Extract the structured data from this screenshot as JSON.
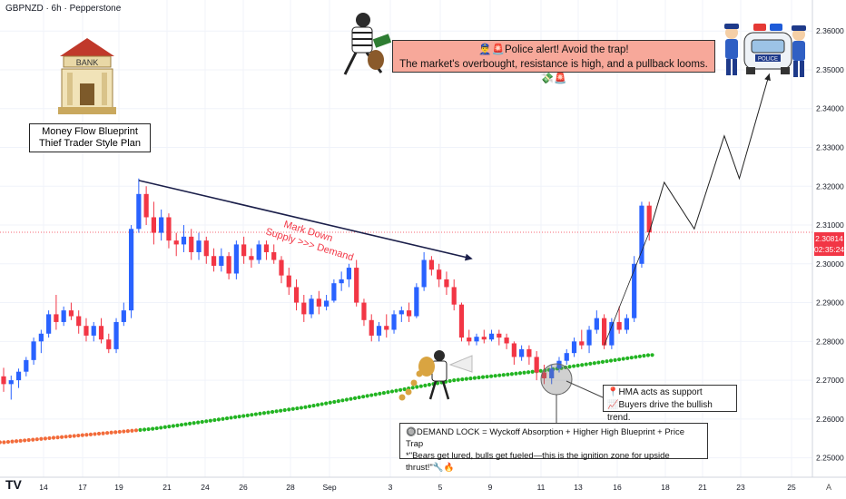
{
  "header": {
    "title": "GBPNZD · 6h · Pepperstone"
  },
  "chart_data": {
    "type": "candlestick",
    "symbol": "GBPNZD",
    "timeframe": "6h",
    "broker": "Pepperstone",
    "ylim": [
      2.245,
      2.368
    ],
    "yticks": [
      2.25,
      2.26,
      2.27,
      2.28,
      2.29,
      2.3,
      2.31,
      2.32,
      2.33,
      2.34,
      2.35,
      2.36
    ],
    "ytick_labels": [
      "2.25000",
      "2.26000",
      "2.27000",
      "2.28000",
      "2.29000",
      "2.30000",
      "2.31000",
      "2.32000",
      "2.33000",
      "2.34000",
      "2.35000",
      "2.36000"
    ],
    "xtick_labels": [
      "14",
      "17",
      "19",
      "21",
      "24",
      "26",
      "28",
      "Sep",
      "3",
      "5",
      "9",
      "11",
      "13",
      "16",
      "18",
      "21",
      "23",
      "25"
    ],
    "current_price": "2.30814",
    "countdown": "02:35:24",
    "candles": [
      [
        2.271,
        2.2732,
        2.267,
        2.269
      ],
      [
        2.269,
        2.2712,
        2.265,
        2.27
      ],
      [
        2.27,
        2.273,
        2.268,
        2.2722
      ],
      [
        2.2722,
        2.276,
        2.271,
        2.2752
      ],
      [
        2.2752,
        2.281,
        2.274,
        2.28
      ],
      [
        2.28,
        2.283,
        2.277,
        2.282
      ],
      [
        2.282,
        2.288,
        2.281,
        2.287
      ],
      [
        2.287,
        2.292,
        2.283,
        2.285
      ],
      [
        2.285,
        2.289,
        2.284,
        2.288
      ],
      [
        2.288,
        2.29,
        2.2855,
        2.2865
      ],
      [
        2.2865,
        2.288,
        2.282,
        2.284
      ],
      [
        2.284,
        2.286,
        2.28,
        2.2815
      ],
      [
        2.2815,
        2.285,
        2.28,
        2.284
      ],
      [
        2.284,
        2.286,
        2.2795,
        2.2805
      ],
      [
        2.2805,
        2.282,
        2.277,
        2.278
      ],
      [
        2.278,
        2.286,
        2.277,
        2.285
      ],
      [
        2.285,
        2.29,
        2.284,
        2.288
      ],
      [
        2.288,
        2.31,
        2.286,
        2.309
      ],
      [
        2.309,
        2.322,
        2.308,
        2.318
      ],
      [
        2.318,
        2.32,
        2.31,
        2.312
      ],
      [
        2.312,
        2.316,
        2.305,
        2.308
      ],
      [
        2.308,
        2.314,
        2.306,
        2.312
      ],
      [
        2.312,
        2.313,
        2.304,
        2.306
      ],
      [
        2.306,
        2.308,
        2.302,
        2.305
      ],
      [
        2.305,
        2.31,
        2.303,
        2.307
      ],
      [
        2.307,
        2.309,
        2.301,
        2.303
      ],
      [
        2.303,
        2.308,
        2.301,
        2.306
      ],
      [
        2.306,
        2.307,
        2.3,
        2.302
      ],
      [
        2.302,
        2.304,
        2.298,
        2.2995
      ],
      [
        2.2995,
        2.304,
        2.298,
        2.302
      ],
      [
        2.302,
        2.303,
        2.296,
        2.2975
      ],
      [
        2.2975,
        2.306,
        2.296,
        2.305
      ],
      [
        2.305,
        2.307,
        2.3,
        2.302
      ],
      [
        2.302,
        2.304,
        2.299,
        2.301
      ],
      [
        2.301,
        2.306,
        2.3,
        2.305
      ],
      [
        2.305,
        2.306,
        2.301,
        2.303
      ],
      [
        2.303,
        2.305,
        2.3,
        2.301
      ],
      [
        2.301,
        2.302,
        2.295,
        2.297
      ],
      [
        2.297,
        2.299,
        2.292,
        2.294
      ],
      [
        2.294,
        2.296,
        2.288,
        2.29
      ],
      [
        2.29,
        2.292,
        2.285,
        2.287
      ],
      [
        2.287,
        2.292,
        2.286,
        2.291
      ],
      [
        2.291,
        2.293,
        2.287,
        2.289
      ],
      [
        2.289,
        2.292,
        2.288,
        2.2905
      ],
      [
        2.2905,
        2.296,
        2.29,
        2.295
      ],
      [
        2.295,
        2.298,
        2.293,
        2.296
      ],
      [
        2.296,
        2.3,
        2.294,
        2.299
      ],
      [
        2.299,
        2.301,
        2.289,
        2.29
      ],
      [
        2.29,
        2.291,
        2.284,
        2.2855
      ],
      [
        2.2855,
        2.287,
        2.28,
        2.2815
      ],
      [
        2.2815,
        2.285,
        2.28,
        2.284
      ],
      [
        2.284,
        2.287,
        2.281,
        2.283
      ],
      [
        2.283,
        2.288,
        2.282,
        2.287
      ],
      [
        2.287,
        2.289,
        2.285,
        2.288
      ],
      [
        2.288,
        2.29,
        2.285,
        2.2865
      ],
      [
        2.2865,
        2.295,
        2.286,
        2.294
      ],
      [
        2.294,
        2.303,
        2.293,
        2.301
      ],
      [
        2.301,
        2.302,
        2.297,
        2.2985
      ],
      [
        2.2985,
        2.3,
        2.294,
        2.296
      ],
      [
        2.296,
        2.298,
        2.292,
        2.294
      ],
      [
        2.294,
        2.296,
        2.288,
        2.2895
      ],
      [
        2.2895,
        2.29,
        2.28,
        2.281
      ],
      [
        2.281,
        2.283,
        2.279,
        2.28
      ],
      [
        2.28,
        2.282,
        2.279,
        2.2812
      ],
      [
        2.2812,
        2.283,
        2.2795,
        2.2805
      ],
      [
        2.2805,
        2.283,
        2.28,
        2.282
      ],
      [
        2.282,
        2.283,
        2.279,
        2.281
      ],
      [
        2.281,
        2.282,
        2.278,
        2.2795
      ],
      [
        2.2795,
        2.28,
        2.274,
        2.276
      ],
      [
        2.276,
        2.279,
        2.275,
        2.278
      ],
      [
        2.278,
        2.279,
        2.274,
        2.276
      ],
      [
        2.276,
        2.2775,
        2.27,
        2.272
      ],
      [
        2.272,
        2.274,
        2.269,
        2.2705
      ],
      [
        2.2705,
        2.274,
        2.269,
        2.273
      ],
      [
        2.273,
        2.276,
        2.272,
        2.275
      ],
      [
        2.275,
        2.278,
        2.274,
        2.277
      ],
      [
        2.277,
        2.281,
        2.276,
        2.28
      ],
      [
        2.28,
        2.283,
        2.278,
        2.279
      ],
      [
        2.279,
        2.284,
        2.277,
        2.283
      ],
      [
        2.283,
        2.288,
        2.282,
        2.286
      ],
      [
        2.286,
        2.287,
        2.278,
        2.279
      ],
      [
        2.279,
        2.286,
        2.278,
        2.285
      ],
      [
        2.285,
        2.289,
        2.282,
        2.283
      ],
      [
        2.283,
        2.287,
        2.282,
        2.286
      ],
      [
        2.286,
        2.302,
        2.285,
        2.3
      ],
      [
        2.3,
        2.316,
        2.299,
        2.315
      ],
      [
        2.315,
        2.316,
        2.306,
        2.3081
      ]
    ],
    "hma": {
      "name": "HMA",
      "points": [
        [
          0,
          2.254
        ],
        [
          20,
          2.2575
        ],
        [
          40,
          2.263
        ],
        [
          60,
          2.27
        ],
        [
          72,
          2.2725
        ],
        [
          86,
          2.2765
        ]
      ]
    },
    "trendline": {
      "from": [
        18,
        2.3215
      ],
      "to": [
        62,
        2.3015
      ]
    },
    "projection": [
      [
        86,
        2.3081
      ],
      [
        88,
        2.321
      ],
      [
        92,
        2.309
      ],
      [
        96,
        2.333
      ],
      [
        98,
        2.322
      ],
      [
        102,
        2.349
      ]
    ],
    "colors": {
      "up": "#2962ff",
      "down": "#f23645",
      "hma_past": "#f26b3a",
      "hma": "#22b422",
      "trendline": "#1b1f4a",
      "projection": "#222222",
      "grid": "#f0f3fa"
    }
  },
  "annotations": {
    "mark_down": "Mark Down",
    "supply_demand": "Supply >>> Demand",
    "plan_line1": "Money Flow Blueprint",
    "plan_line2": "Thief Trader Style Plan",
    "bank_label": "BANK",
    "alert_line1": "👮‍♂️🚨Police alert!  Avoid the trap!",
    "alert_line2": "The market's overbought, resistance is high, and a pullback looms.💸🚨",
    "hma_line1": "📍HMA acts as support",
    "hma_line2": "📈Buyers drive the bullish trend.",
    "demand_line1": "🔘DEMAND LOCK = Wyckoff Absorption + Higher High Blueprint + Price Trap",
    "demand_line2": "*\"Bears get lured, bulls get fueled—this is the ignition zone for upside thrust!\"🔧🔥",
    "police_label": "POLICE"
  },
  "footer": {
    "logo": "TV",
    "a_button": "A"
  }
}
